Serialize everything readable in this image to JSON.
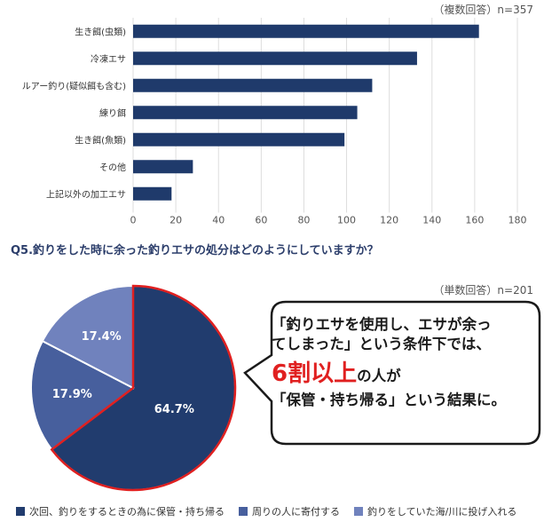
{
  "chart_data": [
    {
      "type": "bar",
      "orientation": "horizontal",
      "note": "（複数回答）n=357",
      "categories": [
        "生き餌(虫類)",
        "冷凍エサ",
        "ルアー釣り(疑似餌も含む)",
        "練り餌",
        "生き餌(魚類)",
        "その他",
        "上記以外の加工エサ"
      ],
      "values": [
        162,
        133,
        112,
        105,
        99,
        28,
        18
      ],
      "xlim": [
        0,
        180
      ],
      "xticks": [
        0,
        20,
        40,
        60,
        80,
        100,
        120,
        140,
        160,
        180
      ],
      "grid": true,
      "color": "#1f3a6b"
    },
    {
      "type": "pie",
      "title": "Q5.釣りをした時に余った釣りエサの処分はどのようにしていますか？",
      "note": "（単数回答）n=201",
      "slices": [
        {
          "label": "次回、釣りをするときの為に保管・持ち帰る",
          "value": 64.7,
          "display": "64.7%",
          "color": "#213c6e"
        },
        {
          "label": "周りの人に寄付する",
          "value": 17.9,
          "display": "17.9%",
          "color": "#475f9d"
        },
        {
          "label": "釣りをしていた海/川に投げ入れる",
          "value": 17.4,
          "display": "17.4%",
          "color": "#7082bd"
        }
      ],
      "highlight_color": "#e02020",
      "legend_position": "bottom"
    }
  ],
  "callout": {
    "line1": "「釣りエサを使用し、エサが余っ",
    "line2": "てしまった」という条件下では、",
    "big": "6割以上",
    "line3_suffix": "の人が",
    "line4": "「保管・持ち帰る」という結果に。"
  },
  "colors": {
    "bar": "#1f3a6b",
    "grid": "#dddddd",
    "axis_text": "#555555"
  }
}
